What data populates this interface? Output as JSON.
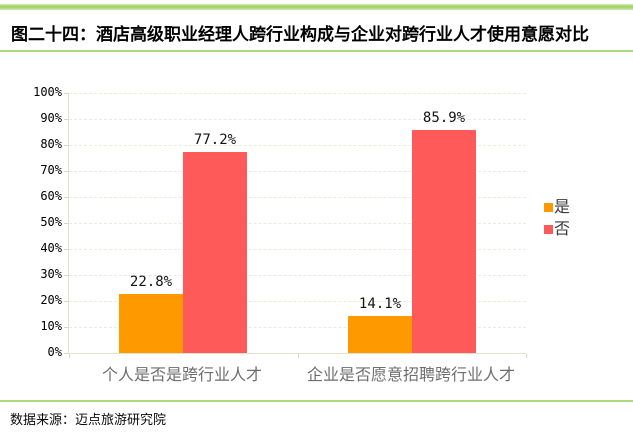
{
  "title": "图二十四：酒店高级职业经理人跨行业构成与企业对跨行业人才使用意愿对比",
  "source": "数据来源：迈点旅游研究院",
  "colors": {
    "accent_green": "#abd97d",
    "bar_yes": "#FF9900",
    "bar_no": "#FF5A5A",
    "axis_line": "#e3e0cf",
    "gridline": "#eceadb",
    "category_label": "#6e6e6e",
    "value_label": "#141414"
  },
  "chart_data": {
    "type": "bar",
    "categories": [
      "个人是否是跨行业人才",
      "企业是否愿意招聘跨行业人才"
    ],
    "series": [
      {
        "name": "是",
        "color": "#FF9900",
        "values": [
          22.8,
          14.1
        ],
        "labels": [
          "22.8%",
          "14.1%"
        ]
      },
      {
        "name": "否",
        "color": "#FF5A5A",
        "values": [
          77.2,
          85.9
        ],
        "labels": [
          "77.2%",
          "85.9%"
        ]
      }
    ],
    "title": "图二十四：酒店高级职业经理人跨行业构成与企业对跨行业人才使用意愿对比",
    "xlabel": "",
    "ylabel": "",
    "ylim": [
      0,
      100
    ],
    "ytick_step": 10,
    "ytick_labels": [
      "0%",
      "10%",
      "20%",
      "30%",
      "40%",
      "50%",
      "60%",
      "70%",
      "80%",
      "90%",
      "100%"
    ],
    "grid": "horizontal-dashed",
    "legend_position": "right"
  }
}
